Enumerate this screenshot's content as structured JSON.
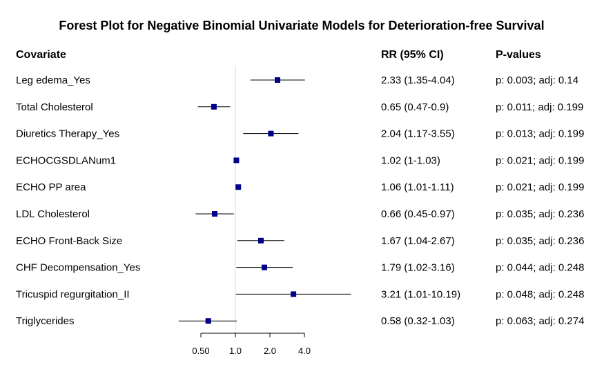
{
  "chart_data": {
    "type": "forest",
    "title": "Forest Plot for Negative Binomial Univariate Models for Deterioration-free Survival",
    "headers": {
      "covariate": "Covariate",
      "rr": "RR (95% CI)",
      "pvalues": "P-values"
    },
    "scale": "log",
    "reference_value": 1.0,
    "xlim": [
      0.25,
      10.19
    ],
    "ticks": [
      {
        "value": 0.5,
        "label": "0.50"
      },
      {
        "value": 1.0,
        "label": "1.0"
      },
      {
        "value": 2.0,
        "label": "2.0"
      },
      {
        "value": 4.0,
        "label": "4.0"
      }
    ],
    "marker_color": "#00008B",
    "rows": [
      {
        "covariate": "Leg edema_Yes",
        "rr": 2.33,
        "lower": 1.35,
        "upper": 4.04,
        "rr_text": "2.33 (1.35-4.04)",
        "p_text": "p: 0.003; adj: 0.14"
      },
      {
        "covariate": "Total Cholesterol",
        "rr": 0.65,
        "lower": 0.47,
        "upper": 0.9,
        "rr_text": "0.65 (0.47-0.9)",
        "p_text": "p: 0.011; adj: 0.199"
      },
      {
        "covariate": "Diuretics Therapy_Yes",
        "rr": 2.04,
        "lower": 1.17,
        "upper": 3.55,
        "rr_text": "2.04 (1.17-3.55)",
        "p_text": "p: 0.013; adj: 0.199"
      },
      {
        "covariate": "ECHOCGSDLANum1",
        "rr": 1.02,
        "lower": 1.0,
        "upper": 1.03,
        "rr_text": "1.02 (1-1.03)",
        "p_text": "p: 0.021; adj: 0.199"
      },
      {
        "covariate": "ECHO PP area",
        "rr": 1.06,
        "lower": 1.01,
        "upper": 1.11,
        "rr_text": "1.06 (1.01-1.11)",
        "p_text": "p: 0.021; adj: 0.199"
      },
      {
        "covariate": "LDL Cholesterol",
        "rr": 0.66,
        "lower": 0.45,
        "upper": 0.97,
        "rr_text": "0.66 (0.45-0.97)",
        "p_text": "p: 0.035; adj: 0.236"
      },
      {
        "covariate": "ECHO Front-Back Size",
        "rr": 1.67,
        "lower": 1.04,
        "upper": 2.67,
        "rr_text": "1.67 (1.04-2.67)",
        "p_text": "p: 0.035; adj: 0.236"
      },
      {
        "covariate": "CHF Decompensation_Yes",
        "rr": 1.79,
        "lower": 1.02,
        "upper": 3.16,
        "rr_text": "1.79 (1.02-3.16)",
        "p_text": "p: 0.044; adj: 0.248"
      },
      {
        "covariate": "Tricuspid regurgitation_II",
        "rr": 3.21,
        "lower": 1.01,
        "upper": 10.19,
        "rr_text": "3.21 (1.01-10.19)",
        "p_text": "p: 0.048; adj: 0.248"
      },
      {
        "covariate": "Triglycerides",
        "rr": 0.58,
        "lower": 0.32,
        "upper": 1.03,
        "rr_text": "0.58 (0.32-1.03)",
        "p_text": "p: 0.063; adj: 0.274"
      }
    ]
  }
}
